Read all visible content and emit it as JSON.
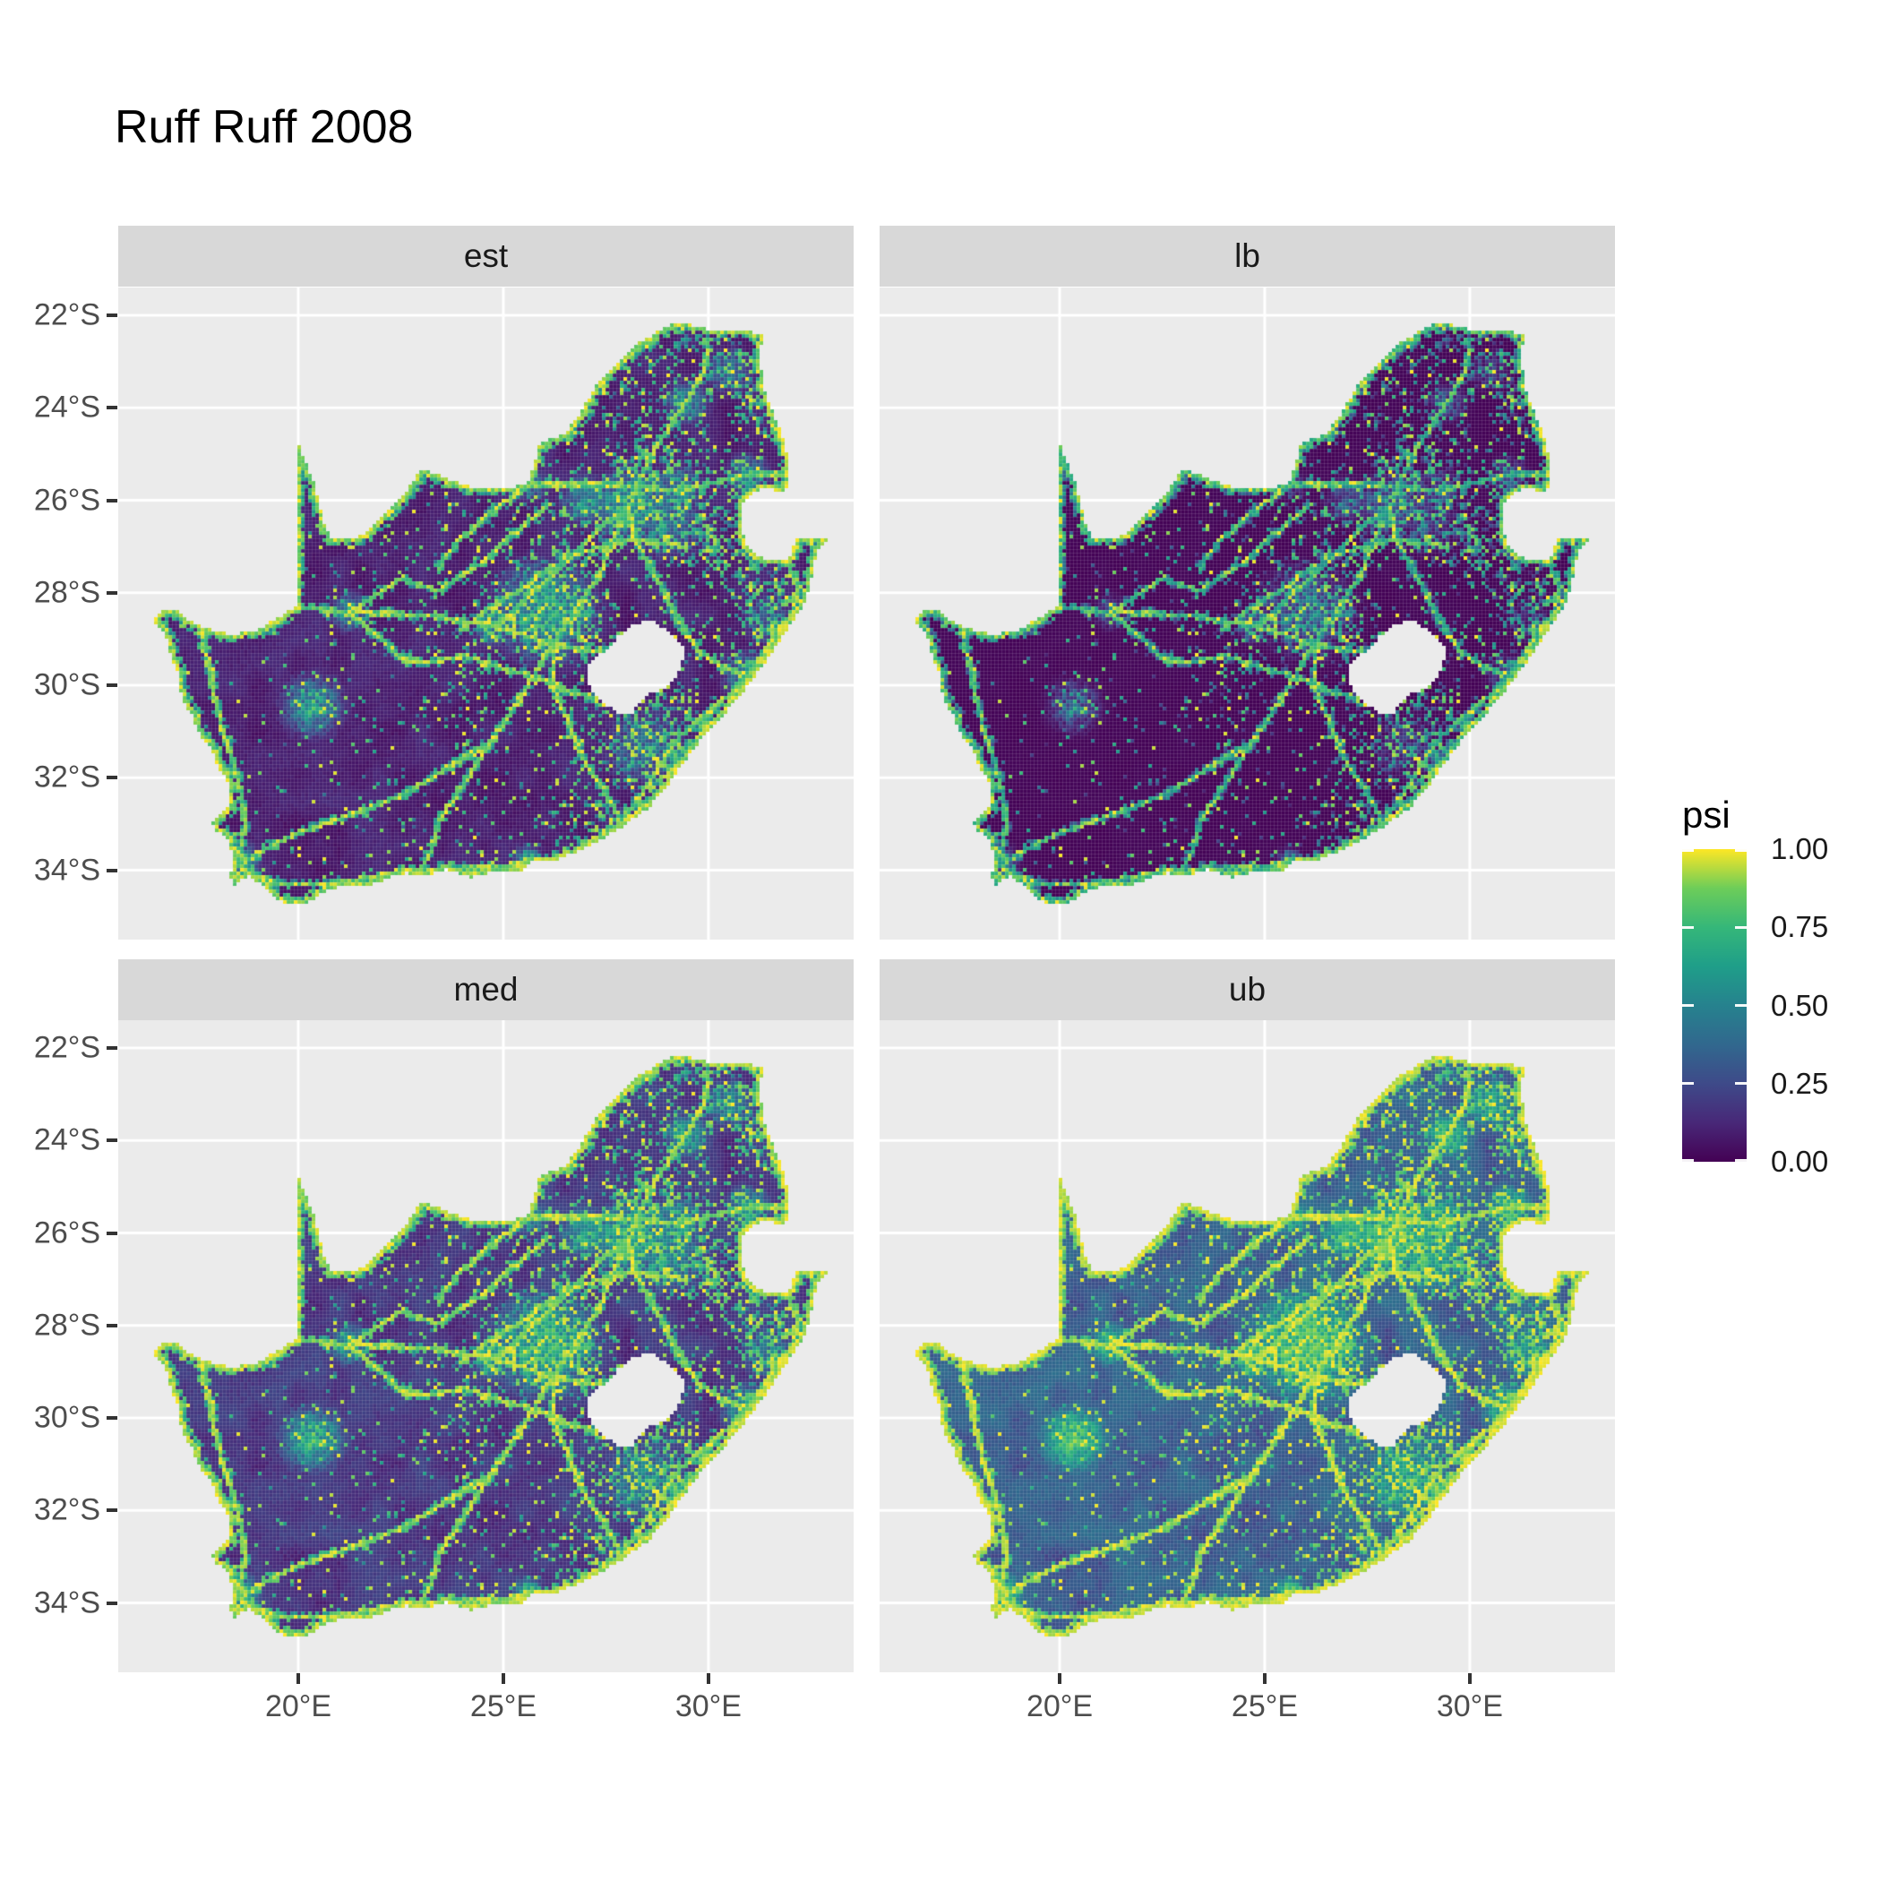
{
  "title": "Ruff Ruff 2008",
  "legend": {
    "title": "psi",
    "ticks": [
      {
        "label": "1.00",
        "value": 1.0
      },
      {
        "label": "0.75",
        "value": 0.75
      },
      {
        "label": "0.50",
        "value": 0.5
      },
      {
        "label": "0.25",
        "value": 0.25
      },
      {
        "label": "0.00",
        "value": 0.0
      }
    ]
  },
  "axes": {
    "x": {
      "ticks": [
        {
          "label": "20°E",
          "value": 20
        },
        {
          "label": "25°E",
          "value": 25
        },
        {
          "label": "30°E",
          "value": 30
        }
      ]
    },
    "y": {
      "ticks": [
        {
          "label": "22°S",
          "value": 22
        },
        {
          "label": "24°S",
          "value": 24
        },
        {
          "label": "26°S",
          "value": 26
        },
        {
          "label": "28°S",
          "value": 28
        },
        {
          "label": "30°S",
          "value": 30
        },
        {
          "label": "32°S",
          "value": 32
        },
        {
          "label": "34°S",
          "value": 34
        }
      ]
    }
  },
  "colors": {
    "panel_bg": "#EBEBEB",
    "strip_bg": "#D8D8D8",
    "grid": "#FFFFFF",
    "axis_text": "#4D4D4D",
    "tick_mark": "#333333",
    "strip_text": "#1A1A1A",
    "title_text": "#000000"
  },
  "chart_data": {
    "type": "heatmap",
    "title": "Ruff Ruff 2008",
    "region": "South Africa (Lesotho shown as hole, Eswatini notch on east border)",
    "facets": [
      "est",
      "lb",
      "med",
      "ub"
    ],
    "legend_title": "psi",
    "legend_ticks": [
      0.0,
      0.25,
      0.5,
      0.75,
      1.0
    ],
    "legend_range": [
      0,
      1
    ],
    "x_ticks_deg_east": [
      20,
      25,
      30
    ],
    "y_ticks_deg_south": [
      22,
      24,
      26,
      28,
      30,
      32,
      34
    ],
    "x_range_deg_east": [
      15.61,
      33.54
    ],
    "y_range_deg_south": [
      21.4,
      35.5
    ],
    "grid": "white major gridlines on grey panel",
    "legend_position": "right",
    "viridis_stops": [
      "#440154",
      "#482878",
      "#3e4a89",
      "#31688e",
      "#26828e",
      "#1f9e89",
      "#35b779",
      "#6dcd59",
      "#fde725"
    ],
    "value_model": {
      "description": "Same occupancy (psi) raster per facet; lb darkest, est baseline, med brighter, ub brightest. Rendered as v^gamma.",
      "facet_gamma": {
        "est": 1.0,
        "lb": 1.9,
        "med": 0.72,
        "ub": 0.45
      },
      "raster_cell_deg": 0.087
    },
    "map_spec": {
      "boundary": [
        [
          16.45,
          28.58
        ],
        [
          16.78,
          28.96
        ],
        [
          16.92,
          29.4
        ],
        [
          17.06,
          29.72
        ],
        [
          17.12,
          30.12
        ],
        [
          17.26,
          30.48
        ],
        [
          17.42,
          30.68
        ],
        [
          17.56,
          31.02
        ],
        [
          17.86,
          31.36
        ],
        [
          18.02,
          31.72
        ],
        [
          18.22,
          31.98
        ],
        [
          18.34,
          32.28
        ],
        [
          18.36,
          32.58
        ],
        [
          18.12,
          32.78
        ],
        [
          17.92,
          32.98
        ],
        [
          18.02,
          33.16
        ],
        [
          18.32,
          33.32
        ],
        [
          18.36,
          33.58
        ],
        [
          18.46,
          33.88
        ],
        [
          18.3,
          34.06
        ],
        [
          18.42,
          34.32
        ],
        [
          18.82,
          34.12
        ],
        [
          19.12,
          34.32
        ],
        [
          19.44,
          34.62
        ],
        [
          19.82,
          34.76
        ],
        [
          20.22,
          34.72
        ],
        [
          20.62,
          34.46
        ],
        [
          21.02,
          34.36
        ],
        [
          21.62,
          34.36
        ],
        [
          22.22,
          34.16
        ],
        [
          22.62,
          34.06
        ],
        [
          23.12,
          34.1
        ],
        [
          23.62,
          33.98
        ],
        [
          24.22,
          34.16
        ],
        [
          24.82,
          34.02
        ],
        [
          25.46,
          34.04
        ],
        [
          25.72,
          33.8
        ],
        [
          26.32,
          33.76
        ],
        [
          26.92,
          33.56
        ],
        [
          27.52,
          33.26
        ],
        [
          27.96,
          33.02
        ],
        [
          28.52,
          32.66
        ],
        [
          28.92,
          32.26
        ],
        [
          29.36,
          31.72
        ],
        [
          29.86,
          31.12
        ],
        [
          30.36,
          30.66
        ],
        [
          30.76,
          30.22
        ],
        [
          31.06,
          29.9
        ],
        [
          31.36,
          29.52
        ],
        [
          31.76,
          29.02
        ],
        [
          32.06,
          28.62
        ],
        [
          32.32,
          28.26
        ],
        [
          32.46,
          27.92
        ],
        [
          32.56,
          27.46
        ],
        [
          32.66,
          27.06
        ],
        [
          32.89,
          26.86
        ],
        [
          32.12,
          26.84
        ],
        [
          31.96,
          27.3
        ],
        [
          31.5,
          27.3
        ],
        [
          31.14,
          27.18
        ],
        [
          30.94,
          26.94
        ],
        [
          30.8,
          26.58
        ],
        [
          30.82,
          26.14
        ],
        [
          30.96,
          25.9
        ],
        [
          31.4,
          25.72
        ],
        [
          31.88,
          25.84
        ],
        [
          31.96,
          25.4
        ],
        [
          31.88,
          24.8
        ],
        [
          31.54,
          24.0
        ],
        [
          31.3,
          23.5
        ],
        [
          31.28,
          22.9
        ],
        [
          31.3,
          22.4
        ],
        [
          30.6,
          22.3
        ],
        [
          30.0,
          22.3
        ],
        [
          29.4,
          22.16
        ],
        [
          29.0,
          22.22
        ],
        [
          28.3,
          22.6
        ],
        [
          27.7,
          23.1
        ],
        [
          27.2,
          23.6
        ],
        [
          26.9,
          24.1
        ],
        [
          26.45,
          24.6
        ],
        [
          25.9,
          24.76
        ],
        [
          25.6,
          25.62
        ],
        [
          25.1,
          25.76
        ],
        [
          24.4,
          25.76
        ],
        [
          23.9,
          25.62
        ],
        [
          23.0,
          25.32
        ],
        [
          22.6,
          25.86
        ],
        [
          22.0,
          26.4
        ],
        [
          21.4,
          26.86
        ],
        [
          20.8,
          26.84
        ],
        [
          20.62,
          26.46
        ],
        [
          20.38,
          25.6
        ],
        [
          19.99,
          24.76
        ],
        [
          19.99,
          28.28
        ],
        [
          19.5,
          28.54
        ],
        [
          19.0,
          28.8
        ],
        [
          18.4,
          28.92
        ],
        [
          17.8,
          28.78
        ],
        [
          17.3,
          28.58
        ],
        [
          17.0,
          28.34
        ],
        [
          16.7,
          28.4
        ]
      ],
      "lesotho_hole": [
        [
          28.62,
          28.58
        ],
        [
          29.08,
          28.88
        ],
        [
          29.32,
          29.08
        ],
        [
          29.44,
          29.34
        ],
        [
          29.3,
          29.64
        ],
        [
          29.14,
          29.94
        ],
        [
          28.88,
          30.1
        ],
        [
          28.56,
          30.16
        ],
        [
          28.26,
          30.46
        ],
        [
          28.1,
          30.66
        ],
        [
          27.76,
          30.6
        ],
        [
          27.42,
          30.36
        ],
        [
          27.06,
          30.0
        ],
        [
          27.02,
          29.6
        ],
        [
          27.3,
          29.36
        ],
        [
          27.56,
          29.2
        ],
        [
          27.82,
          28.92
        ],
        [
          28.16,
          28.7
        ]
      ],
      "bright_lines": [
        [
          [
            18.6,
            33.85
          ],
          [
            19.7,
            33.3
          ],
          [
            20.6,
            33.0
          ],
          [
            21.6,
            32.7
          ],
          [
            22.6,
            32.35
          ],
          [
            23.8,
            31.7
          ],
          [
            24.7,
            31.2
          ],
          [
            25.1,
            30.7
          ],
          [
            25.6,
            30.0
          ],
          [
            26.2,
            29.12
          ],
          [
            26.8,
            28.3
          ],
          [
            27.3,
            27.7
          ],
          [
            27.6,
            27.0
          ],
          [
            28.05,
            26.2
          ],
          [
            28.25,
            25.7
          ],
          [
            28.6,
            25.0
          ],
          [
            29.0,
            24.5
          ],
          [
            29.45,
            23.9
          ],
          [
            29.9,
            23.2
          ],
          [
            30.0,
            22.5
          ]
        ],
        [
          [
            18.6,
            33.95
          ],
          [
            19.5,
            34.3
          ],
          [
            20.5,
            34.3
          ],
          [
            21.5,
            34.2
          ],
          [
            22.2,
            34.05
          ],
          [
            23.3,
            34.0
          ],
          [
            24.5,
            33.95
          ],
          [
            25.6,
            33.85
          ],
          [
            26.6,
            33.65
          ],
          [
            27.9,
            32.98
          ],
          [
            28.7,
            31.9
          ],
          [
            29.3,
            31.1
          ],
          [
            30.0,
            30.6
          ],
          [
            30.7,
            30.05
          ],
          [
            30.95,
            29.8
          ],
          [
            31.5,
            29.1
          ],
          [
            32.0,
            28.5
          ],
          [
            32.2,
            27.9
          ],
          [
            31.9,
            27.35
          ]
        ],
        [
          [
            30.95,
            29.8
          ],
          [
            30.4,
            29.6
          ],
          [
            29.8,
            29.3
          ],
          [
            29.4,
            28.8
          ],
          [
            29.1,
            28.3
          ],
          [
            28.8,
            27.8
          ],
          [
            28.5,
            27.3
          ],
          [
            28.2,
            26.8
          ],
          [
            28.05,
            26.2
          ]
        ],
        [
          [
            25.65,
            25.65
          ],
          [
            26.4,
            25.65
          ],
          [
            27.25,
            25.65
          ],
          [
            28.25,
            25.7
          ]
        ],
        [
          [
            28.25,
            25.7
          ],
          [
            29.25,
            25.8
          ],
          [
            30.0,
            25.65
          ],
          [
            30.98,
            25.45
          ],
          [
            31.95,
            25.43
          ]
        ],
        [
          [
            18.55,
            33.8
          ],
          [
            18.7,
            33.0
          ],
          [
            18.6,
            32.3
          ],
          [
            18.4,
            31.6
          ],
          [
            18.1,
            30.8
          ],
          [
            17.9,
            30.0
          ],
          [
            17.88,
            29.66
          ],
          [
            17.7,
            29.2
          ],
          [
            17.6,
            28.75
          ]
        ],
        [
          [
            28.05,
            26.2
          ],
          [
            27.3,
            26.6
          ],
          [
            26.8,
            27.1
          ],
          [
            26.2,
            27.6
          ],
          [
            25.6,
            28.1
          ],
          [
            24.75,
            28.74
          ],
          [
            24.0,
            28.6
          ],
          [
            23.2,
            28.5
          ],
          [
            22.3,
            28.45
          ],
          [
            21.25,
            28.42
          ],
          [
            20.4,
            28.35
          ]
        ],
        [
          [
            24.75,
            28.74
          ],
          [
            25.5,
            28.9
          ],
          [
            26.2,
            29.12
          ],
          [
            26.9,
            29.25
          ],
          [
            27.5,
            29.3
          ]
        ],
        [
          [
            27.9,
            32.98
          ],
          [
            27.4,
            32.2
          ],
          [
            26.9,
            31.5
          ],
          [
            26.6,
            30.8
          ],
          [
            26.3,
            30.2
          ],
          [
            26.2,
            29.6
          ],
          [
            26.2,
            29.12
          ]
        ],
        [
          [
            23.0,
            34.0
          ],
          [
            23.3,
            33.4
          ],
          [
            23.5,
            32.8
          ],
          [
            24.0,
            32.2
          ],
          [
            24.7,
            31.2
          ]
        ],
        [
          [
            27.3,
            30.3
          ],
          [
            26.5,
            30.1
          ],
          [
            25.7,
            29.8
          ],
          [
            24.8,
            29.6
          ],
          [
            24.05,
            29.35
          ],
          [
            23.3,
            29.5
          ],
          [
            22.6,
            29.45
          ],
          [
            21.9,
            28.9
          ],
          [
            21.25,
            28.45
          ],
          [
            20.6,
            28.35
          ],
          [
            19.99,
            28.3
          ],
          [
            19.4,
            28.6
          ],
          [
            18.8,
            28.85
          ],
          [
            18.2,
            28.85
          ],
          [
            17.6,
            28.7
          ],
          [
            17.0,
            28.35
          ],
          [
            16.5,
            28.6
          ]
        ],
        [
          [
            29.3,
            26.95
          ],
          [
            28.6,
            26.9
          ],
          [
            28.1,
            26.85
          ],
          [
            27.4,
            27.0
          ],
          [
            26.8,
            27.15
          ],
          [
            26.1,
            27.5
          ],
          [
            25.4,
            27.95
          ],
          [
            24.7,
            28.3
          ],
          [
            24.05,
            28.75
          ]
        ],
        [
          [
            26.1,
            26.1
          ],
          [
            25.0,
            26.9
          ],
          [
            24.4,
            27.4
          ],
          [
            23.4,
            27.95
          ],
          [
            22.5,
            27.7
          ],
          [
            21.25,
            28.42
          ]
        ],
        [
          [
            23.4,
            27.45
          ],
          [
            24.0,
            26.8
          ],
          [
            24.8,
            26.2
          ],
          [
            25.65,
            25.65
          ]
        ]
      ],
      "hotspots": [
        [
          28.08,
          26.1,
          0.75,
          1.0
        ],
        [
          26.0,
          28.4,
          1.05,
          0.95
        ],
        [
          26.2,
          29.12,
          0.45,
          0.9
        ],
        [
          24.75,
          28.74,
          0.4,
          0.85
        ],
        [
          20.35,
          30.45,
          0.65,
          0.85
        ],
        [
          18.55,
          33.85,
          0.45,
          0.9
        ],
        [
          30.95,
          29.8,
          0.5,
          0.85
        ],
        [
          25.6,
          33.8,
          0.35,
          0.8
        ],
        [
          27.9,
          32.95,
          0.3,
          0.7
        ],
        [
          29.45,
          23.9,
          0.5,
          0.7
        ],
        [
          30.98,
          25.45,
          0.45,
          0.7
        ],
        [
          21.25,
          28.42,
          0.4,
          0.8
        ],
        [
          28.45,
          31.35,
          0.9,
          0.55
        ],
        [
          31.5,
          28.6,
          0.6,
          0.5
        ],
        [
          27.0,
          26.0,
          0.55,
          0.75
        ],
        [
          29.2,
          25.8,
          0.6,
          0.65
        ],
        [
          25.65,
          25.65,
          0.4,
          0.6
        ],
        [
          30.5,
          23.2,
          0.5,
          0.6
        ],
        [
          29.0,
          26.5,
          0.8,
          0.6
        ]
      ]
    }
  }
}
